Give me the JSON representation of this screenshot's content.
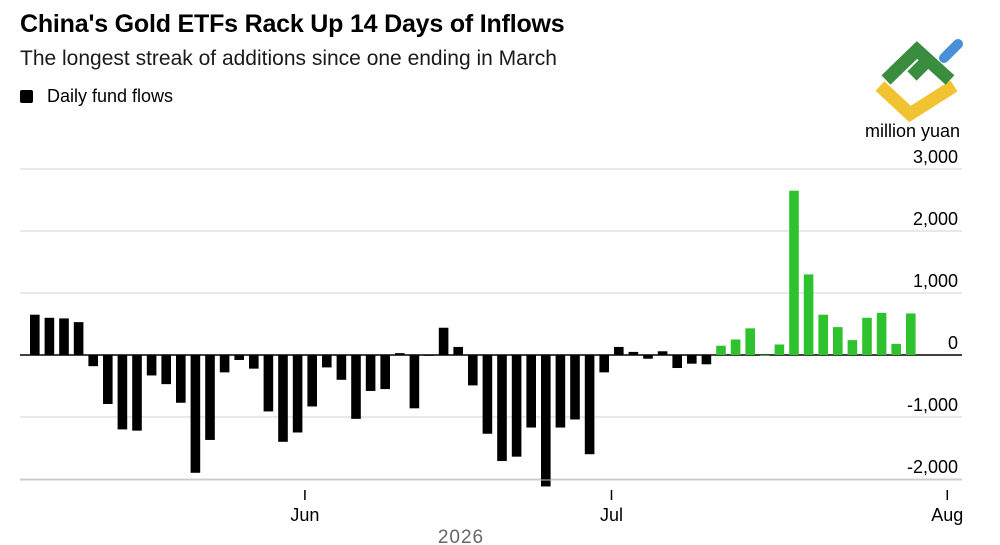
{
  "header": {
    "title": "China's Gold ETFs Rack Up 14 Days of Inflows",
    "subtitle": "The longest streak of additions since one ending in March",
    "legend_label": "Daily fund flows",
    "unit_label": "million yuan"
  },
  "logo": {
    "icon": "brand-logo-icon",
    "colors": [
      "#3a8d3e",
      "#f1c232",
      "#4a90d9"
    ]
  },
  "colors": {
    "outflow_and_older": "#000000",
    "streak": "#2ec22e",
    "grid": "#d0d0d0"
  },
  "chart_data": {
    "type": "bar",
    "title": "China's Gold ETFs Rack Up 14 Days of Inflows",
    "subtitle": "The longest streak of additions since one ending in March",
    "ylabel": "million yuan",
    "ylim": [
      -2200,
      3000
    ],
    "yticks": [
      3000,
      2000,
      1000,
      0,
      -1000,
      -2000
    ],
    "ytick_labels": [
      "3,000",
      "2,000",
      "1,000",
      "0",
      "-1,000",
      "-2,000"
    ],
    "xlabel": "2026",
    "xticks": [
      {
        "label": "Jun",
        "after_bar": 18
      },
      {
        "label": "Jul",
        "after_bar": 39
      },
      {
        "label": "Aug",
        "after_bar": 62
      }
    ],
    "grid": true,
    "series": [
      {
        "name": "Daily fund flows",
        "values": [
          650,
          600,
          590,
          530,
          -180,
          -790,
          -1200,
          -1220,
          -330,
          -470,
          -770,
          -1900,
          -1370,
          -280,
          -80,
          -220,
          -910,
          -1400,
          -1250,
          -830,
          -200,
          -400,
          -1030,
          -580,
          -550,
          30,
          -860,
          0,
          440,
          130,
          -490,
          -1270,
          -1710,
          -1640,
          -1170,
          -2120,
          -1170,
          -1040,
          -1600,
          -280,
          130,
          50,
          -60,
          60,
          -210,
          -140,
          -150,
          150,
          250,
          430,
          0,
          170,
          2650,
          1300,
          650,
          450,
          240,
          600,
          680,
          180,
          670
        ]
      }
    ],
    "streak": {
      "label": "14 Days of Inflows",
      "start_index": 47,
      "end_index": 60
    }
  }
}
